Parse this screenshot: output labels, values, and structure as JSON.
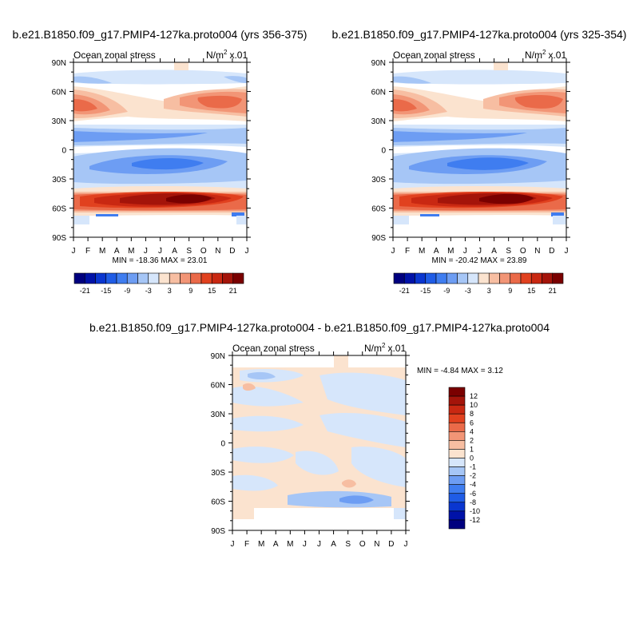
{
  "chart_data": [
    {
      "type": "heatmap",
      "title": "b.e21.B1850.f09_g17.PMIP4-127ka.proto004 (yrs 356-375)",
      "subtitle_left": "Ocean zonal stress",
      "units_base": "N/m",
      "units_exp": "2",
      "units_scale": "x.01",
      "x_tick_labels": [
        "J",
        "F",
        "M",
        "A",
        "M",
        "J",
        "J",
        "A",
        "S",
        "O",
        "N",
        "D",
        "J"
      ],
      "y_tick_labels": [
        "90N",
        "60N",
        "30N",
        "0",
        "30S",
        "60S",
        "90S"
      ],
      "ylim": [
        -90,
        90
      ],
      "min_max_text": "MIN = -18.36 MAX =  23.01",
      "colorbar": {
        "orientation": "horizontal",
        "labels": [
          "-21",
          "-15",
          "-9",
          "-3",
          "3",
          "9",
          "15",
          "21"
        ],
        "levels": [
          -21,
          -18,
          -15,
          -12,
          -9,
          -6,
          -3,
          0,
          3,
          6,
          9,
          12,
          15,
          18,
          21
        ]
      }
    },
    {
      "type": "heatmap",
      "title": "b.e21.B1850.f09_g17.PMIP4-127ka.proto004 (yrs 325-354)",
      "subtitle_left": "Ocean zonal stress",
      "units_base": "N/m",
      "units_exp": "2",
      "units_scale": "x.01",
      "x_tick_labels": [
        "J",
        "F",
        "M",
        "A",
        "M",
        "J",
        "J",
        "A",
        "S",
        "O",
        "N",
        "D",
        "J"
      ],
      "y_tick_labels": [
        "90N",
        "60N",
        "30N",
        "0",
        "30S",
        "60S",
        "90S"
      ],
      "ylim": [
        -90,
        90
      ],
      "min_max_text": "MIN = -20.42 MAX =  23.89",
      "colorbar": {
        "orientation": "horizontal",
        "labels": [
          "-21",
          "-15",
          "-9",
          "-3",
          "3",
          "9",
          "15",
          "21"
        ],
        "levels": [
          -21,
          -18,
          -15,
          -12,
          -9,
          -6,
          -3,
          0,
          3,
          6,
          9,
          12,
          15,
          18,
          21
        ]
      }
    },
    {
      "type": "heatmap",
      "title": "b.e21.B1850.f09_g17.PMIP4-127ka.proto004 - b.e21.B1850.f09_g17.PMIP4-127ka.proto004",
      "subtitle_left": "Ocean zonal stress",
      "units_base": "N/m",
      "units_exp": "2",
      "units_scale": "x.01",
      "x_tick_labels": [
        "J",
        "F",
        "M",
        "A",
        "M",
        "J",
        "J",
        "A",
        "S",
        "O",
        "N",
        "D",
        "J"
      ],
      "y_tick_labels": [
        "90N",
        "60N",
        "30N",
        "0",
        "30S",
        "60S",
        "90S"
      ],
      "ylim": [
        -90,
        90
      ],
      "min_max_text": "MIN =  -4.84 MAX =   3.12",
      "colorbar": {
        "orientation": "vertical",
        "labels": [
          "12",
          "10",
          "8",
          "6",
          "4",
          "2",
          "1",
          "0",
          "-1",
          "-2",
          "-4",
          "-6",
          "-8",
          "-10",
          "-12"
        ],
        "levels": [
          -12,
          -10,
          -8,
          -6,
          -4,
          -2,
          -1,
          0,
          1,
          2,
          4,
          6,
          8,
          10,
          12
        ]
      }
    }
  ],
  "colors": {
    "scale16": [
      "#00007f",
      "#0012a8",
      "#0a36d0",
      "#1f5ce6",
      "#3f7df0",
      "#6d9df3",
      "#a6c6f6",
      "#d6e6fb",
      "#fbe3cf",
      "#f7bea2",
      "#f29576",
      "#ea6a49",
      "#e1411f",
      "#c92812",
      "#a4140a",
      "#7a0000"
    ],
    "frame": "#000000"
  }
}
